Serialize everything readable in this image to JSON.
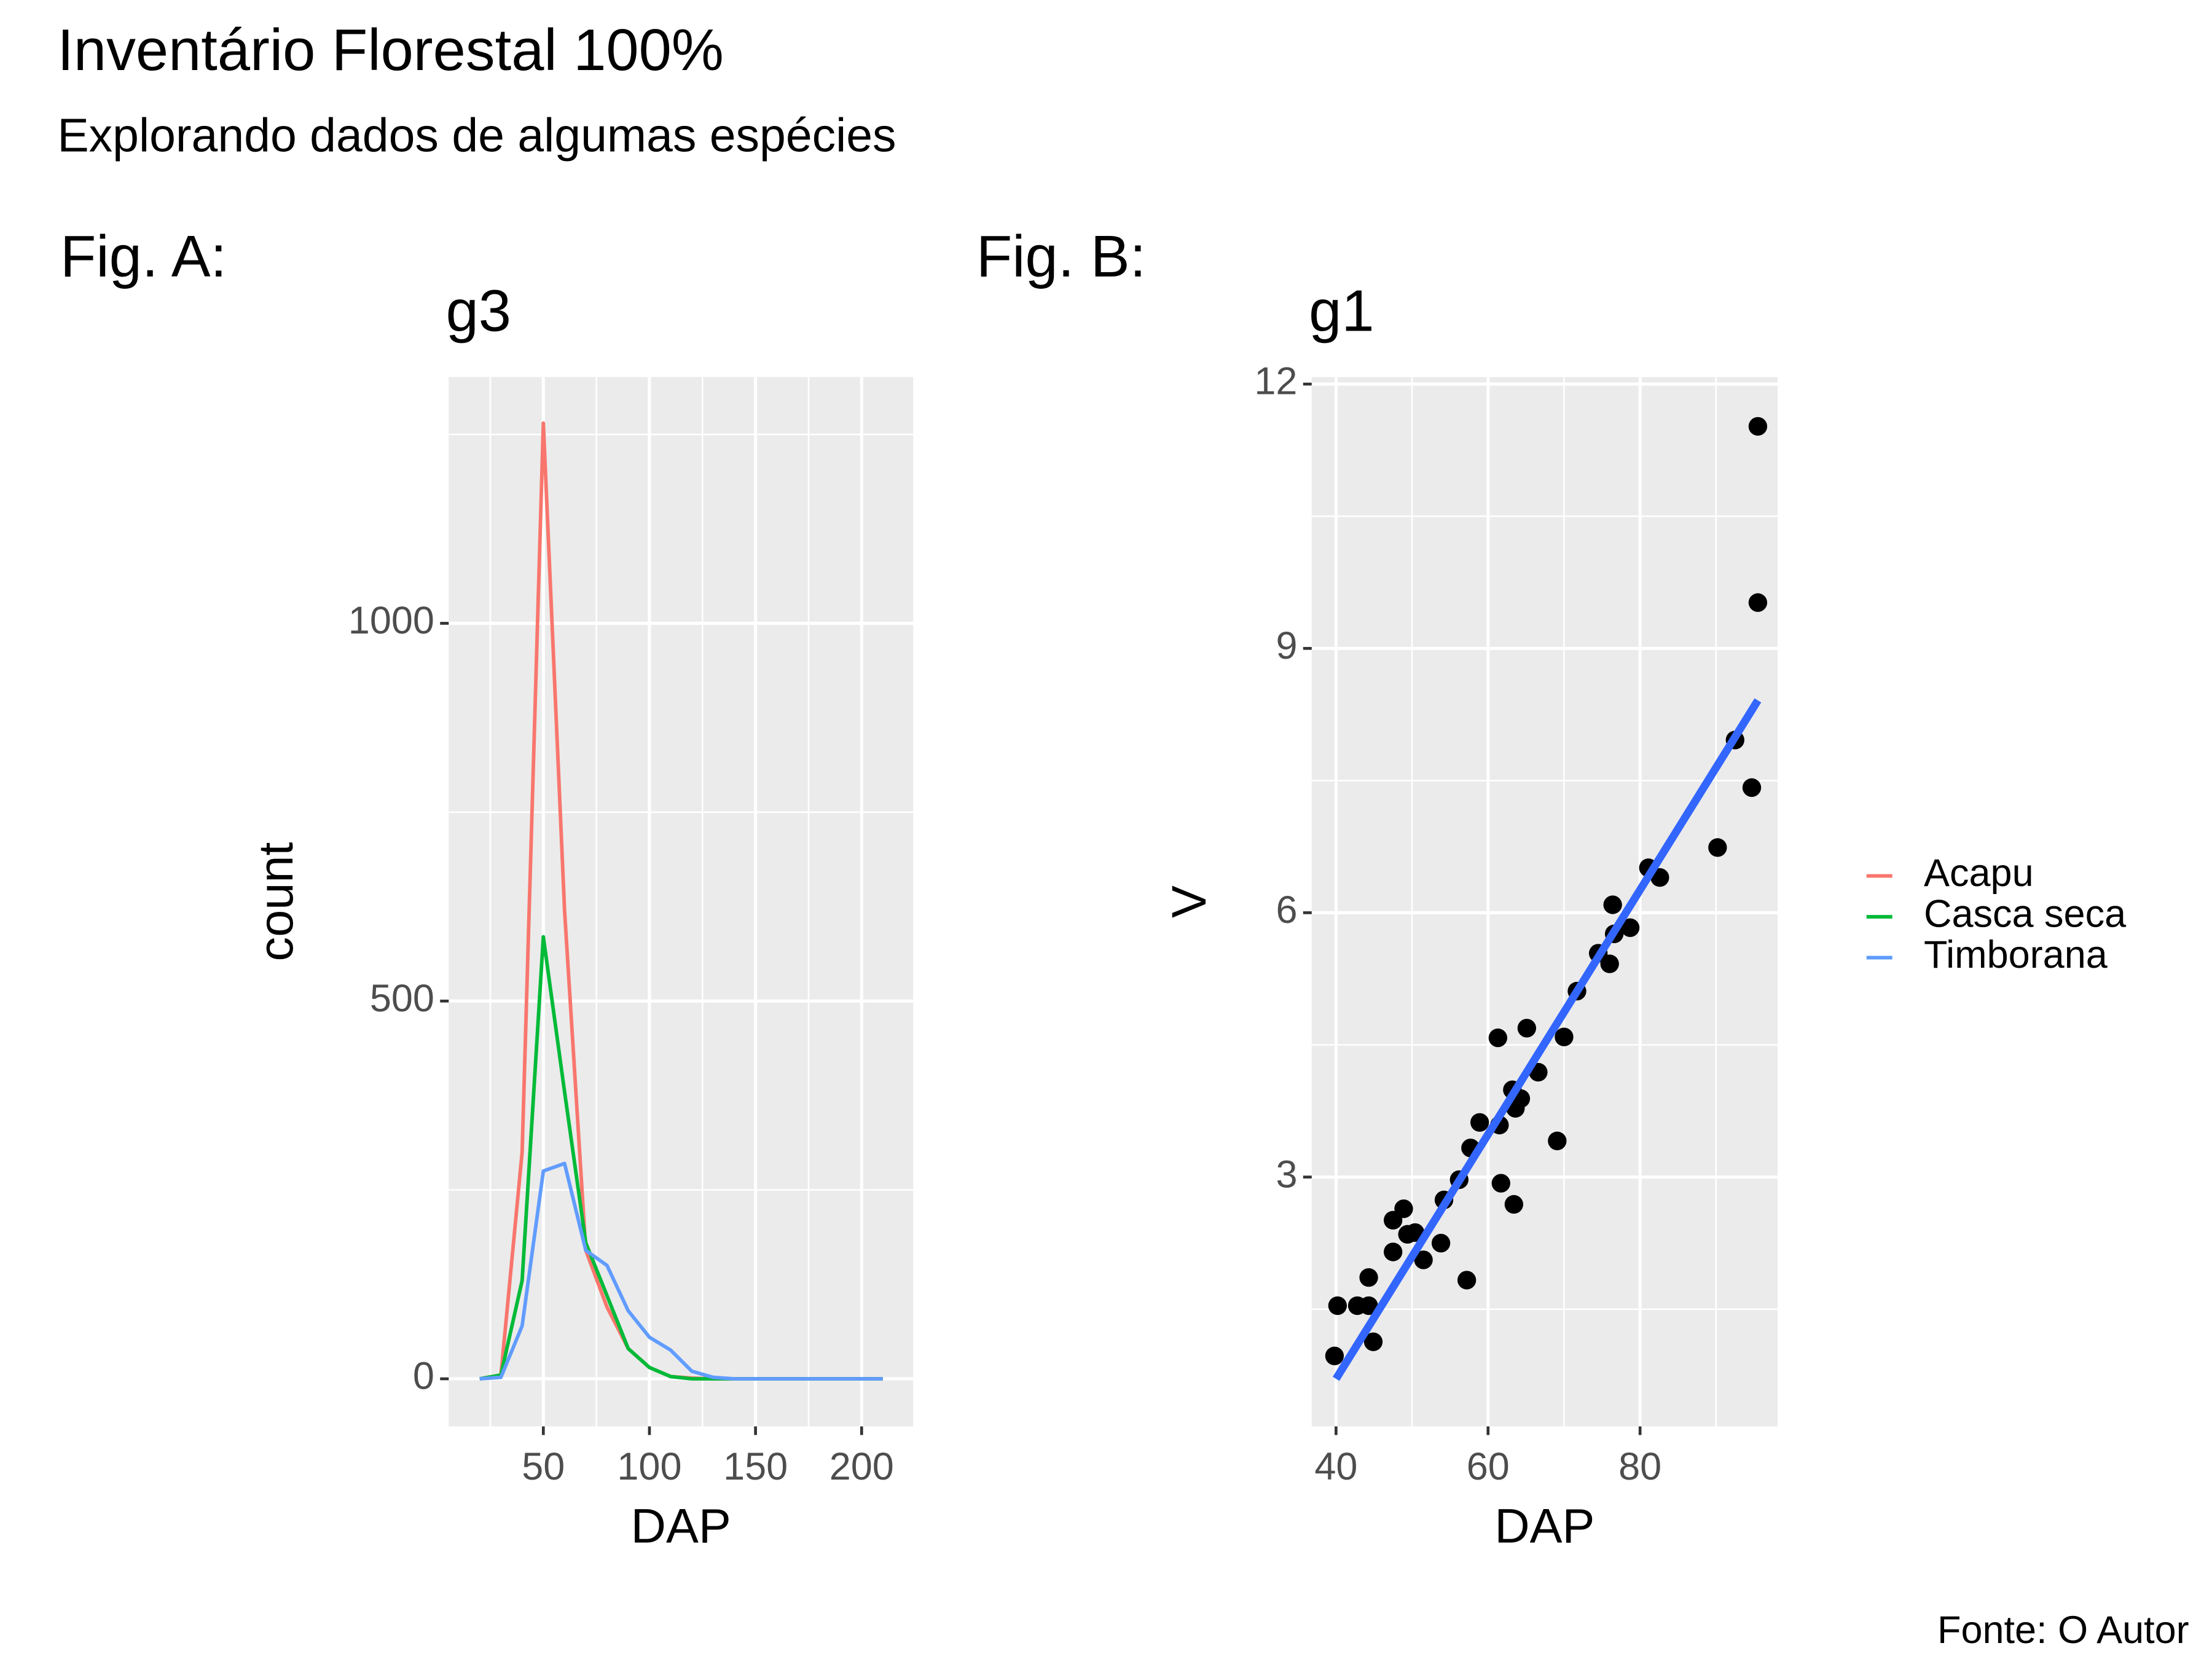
{
  "page": {
    "title": "Inventário Florestal 100%",
    "subtitle": "Explorando dados de algumas espécies",
    "caption": "Fonte: O Autor"
  },
  "chart_data": [
    {
      "type": "line",
      "tag": "Fig. A:",
      "title": "g3",
      "x_label": "DAP",
      "y_label": "count",
      "x": [
        20,
        30,
        40,
        50,
        60,
        70,
        80,
        90,
        100,
        110,
        120,
        130,
        140,
        150,
        160,
        170,
        180,
        190,
        200,
        210
      ],
      "series": [
        {
          "name": "Acapu",
          "color": "#F8766D",
          "values": [
            0,
            5,
            300,
            1265,
            620,
            170,
            95,
            40,
            15,
            3,
            1,
            0,
            0,
            0,
            0,
            0,
            0,
            0,
            0,
            0
          ]
        },
        {
          "name": "Casca seca",
          "color": "#00BA38",
          "values": [
            0,
            5,
            130,
            585,
            380,
            180,
            110,
            40,
            15,
            3,
            0,
            0,
            0,
            0,
            0,
            0,
            0,
            0,
            0,
            0
          ]
        },
        {
          "name": "Timborana",
          "color": "#619CFF",
          "values": [
            0,
            2,
            70,
            275,
            285,
            170,
            150,
            90,
            55,
            38,
            10,
            2,
            0,
            0,
            0,
            0,
            0,
            0,
            0,
            0
          ]
        }
      ],
      "xlim": [
        5.4,
        224.3
      ],
      "ylim": [
        -63,
        1326
      ],
      "xticks": [
        50,
        100,
        150,
        200
      ],
      "yticks": [
        0,
        500,
        1000
      ],
      "xminor": [
        25,
        75,
        125,
        175
      ],
      "yminor": [
        250,
        750,
        1250
      ],
      "grid": true,
      "legend": "right"
    },
    {
      "type": "scatter",
      "tag": "Fig. B:",
      "title": "g1",
      "x_label": "DAP",
      "y_label": "V",
      "color": "#000000",
      "x": [
        39.8,
        40.2,
        42.8,
        44.3,
        44.3,
        44.9,
        47.5,
        48.9,
        47.5,
        49.4,
        50.4,
        51.5,
        53.8,
        54.2,
        56.2,
        57.2,
        57.7,
        58.9,
        61.3,
        61.5,
        61.7,
        63.4,
        63.2,
        63.6,
        64.3,
        65.1,
        66.6,
        69.1,
        70.0,
        71.7,
        74.5,
        76.0,
        76.4,
        76.6,
        78.7,
        81.1,
        82.6,
        90.2,
        92.5,
        94.7,
        95.5,
        95.5
      ],
      "values": [
        0.97,
        1.54,
        1.54,
        1.54,
        1.86,
        1.13,
        2.51,
        2.64,
        2.15,
        2.35,
        2.37,
        2.06,
        2.25,
        2.74,
        2.97,
        1.83,
        3.33,
        3.62,
        4.58,
        3.59,
        2.93,
        2.69,
        3.99,
        3.78,
        3.89,
        4.69,
        4.19,
        3.41,
        4.59,
        5.11,
        5.54,
        5.42,
        6.09,
        5.76,
        5.83,
        6.51,
        6.4,
        6.74,
        7.96,
        7.42,
        9.52,
        11.52
      ],
      "fit_line": {
        "color": "#3366FF",
        "x": [
          40,
          95.5
        ],
        "values": [
          0.71,
          8.41
        ]
      },
      "xlim": [
        36.8,
        98.1
      ],
      "ylim": [
        0.17,
        12.08
      ],
      "xticks": [
        40,
        60,
        80
      ],
      "yticks": [
        3,
        6,
        9,
        12
      ],
      "xminor": [
        50,
        70,
        90
      ],
      "yminor": [
        1.5,
        4.5,
        7.5,
        10.5
      ],
      "grid": true
    }
  ]
}
